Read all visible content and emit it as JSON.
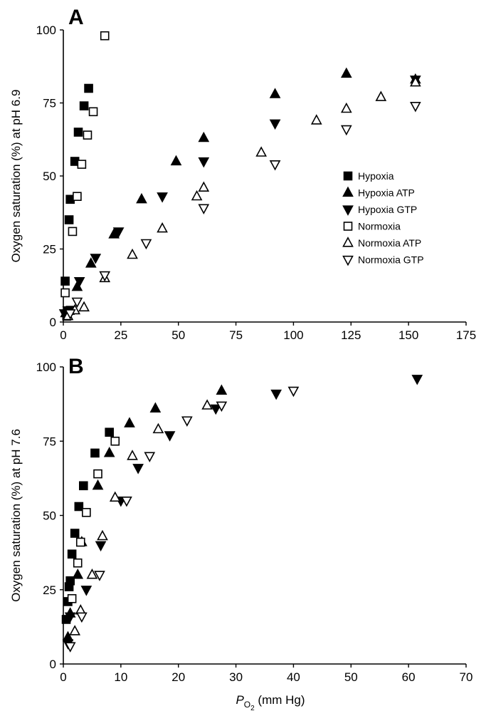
{
  "chart_data": [
    {
      "panel": "A",
      "type": "scatter",
      "ylabel": "Oxygen saturation (%) at pH 6.9",
      "xlabel": "",
      "xlim": [
        0,
        175
      ],
      "ylim": [
        0,
        100
      ],
      "xticks": [
        0,
        25,
        50,
        75,
        100,
        125,
        150,
        175
      ],
      "yticks": [
        0,
        25,
        50,
        75,
        100
      ],
      "grid": false,
      "legend_position": "right",
      "series": [
        {
          "name": "Hypoxia",
          "marker": "square",
          "filled": true,
          "points": [
            [
              0.8,
              14
            ],
            [
              1.5,
              2
            ],
            [
              2.5,
              35
            ],
            [
              3,
              42
            ],
            [
              5,
              55
            ],
            [
              6.5,
              65
            ],
            [
              9,
              74
            ],
            [
              11,
              80
            ],
            [
              3,
              4
            ]
          ]
        },
        {
          "name": "Hypoxia ATP",
          "marker": "triangle-up",
          "filled": true,
          "points": [
            [
              1,
              3
            ],
            [
              6,
              12
            ],
            [
              12,
              20
            ],
            [
              22,
              30
            ],
            [
              34,
              42
            ],
            [
              49,
              55
            ],
            [
              61,
              63
            ],
            [
              92,
              78
            ],
            [
              123,
              85
            ],
            [
              153,
              83
            ]
          ]
        },
        {
          "name": "Hypoxia GTP",
          "marker": "triangle-down",
          "filled": true,
          "points": [
            [
              0.5,
              3
            ],
            [
              2,
              4
            ],
            [
              7,
              14
            ],
            [
              14,
              22
            ],
            [
              24,
              31
            ],
            [
              43,
              43
            ],
            [
              61,
              55
            ],
            [
              92,
              68
            ],
            [
              153,
              83
            ]
          ]
        },
        {
          "name": "Normoxia",
          "marker": "square",
          "filled": false,
          "points": [
            [
              0.8,
              10
            ],
            [
              4,
              31
            ],
            [
              6,
              43
            ],
            [
              8,
              54
            ],
            [
              10.5,
              64
            ],
            [
              13,
              72
            ],
            [
              18,
              98
            ]
          ]
        },
        {
          "name": "Normoxia ATP",
          "marker": "triangle-up",
          "filled": false,
          "points": [
            [
              2,
              2
            ],
            [
              5,
              4
            ],
            [
              9,
              5
            ],
            [
              18,
              15
            ],
            [
              30,
              23
            ],
            [
              43,
              32
            ],
            [
              58,
              43
            ],
            [
              61,
              46
            ],
            [
              86,
              58
            ],
            [
              110,
              69
            ],
            [
              123,
              73
            ],
            [
              138,
              77
            ],
            [
              153,
              82
            ]
          ]
        },
        {
          "name": "Normoxia GTP",
          "marker": "triangle-down",
          "filled": false,
          "points": [
            [
              3,
              3
            ],
            [
              6,
              7
            ],
            [
              18,
              16
            ],
            [
              36,
              27
            ],
            [
              61,
              39
            ],
            [
              92,
              54
            ],
            [
              123,
              66
            ],
            [
              153,
              74
            ]
          ]
        }
      ]
    },
    {
      "panel": "B",
      "type": "scatter",
      "ylabel": "Oxygen saturation (%) at pH 7.6",
      "xlabel": "(mm Hg)",
      "xlabel_symbol": "P",
      "xlabel_subscript": "O",
      "xlabel_subsubscript": "2",
      "xlim": [
        0,
        70
      ],
      "ylim": [
        0,
        100
      ],
      "xticks": [
        0,
        10,
        20,
        30,
        40,
        50,
        60,
        70
      ],
      "yticks": [
        0,
        25,
        50,
        75,
        100
      ],
      "grid": false,
      "series": [
        {
          "name": "Hypoxia",
          "marker": "square",
          "filled": true,
          "points": [
            [
              0.5,
              15
            ],
            [
              0.8,
              21
            ],
            [
              1,
              26
            ],
            [
              1.2,
              28
            ],
            [
              1.5,
              37
            ],
            [
              2,
              44
            ],
            [
              2.7,
              53
            ],
            [
              3.5,
              60
            ],
            [
              5.5,
              71
            ],
            [
              8,
              78
            ]
          ]
        },
        {
          "name": "Hypoxia ATP",
          "marker": "triangle-up",
          "filled": true,
          "points": [
            [
              0.8,
              9
            ],
            [
              1.2,
              17
            ],
            [
              2.5,
              30
            ],
            [
              3.2,
              41
            ],
            [
              6,
              60
            ],
            [
              8,
              71
            ],
            [
              11.5,
              81
            ],
            [
              16,
              86
            ],
            [
              27.5,
              92
            ]
          ]
        },
        {
          "name": "Hypoxia GTP",
          "marker": "triangle-down",
          "filled": true,
          "points": [
            [
              0.8,
              7
            ],
            [
              1.2,
              16
            ],
            [
              4,
              25
            ],
            [
              6.5,
              40
            ],
            [
              10,
              55
            ],
            [
              13,
              66
            ],
            [
              18.5,
              77
            ],
            [
              26.5,
              86
            ],
            [
              37,
              91
            ],
            [
              61.5,
              96
            ]
          ]
        },
        {
          "name": "Normoxia",
          "marker": "square",
          "filled": false,
          "points": [
            [
              1.5,
              22
            ],
            [
              2.5,
              34
            ],
            [
              3,
              41
            ],
            [
              4,
              51
            ],
            [
              6,
              64
            ],
            [
              9,
              75
            ]
          ]
        },
        {
          "name": "Normoxia ATP",
          "marker": "triangle-up",
          "filled": false,
          "points": [
            [
              2,
              11
            ],
            [
              3,
              18
            ],
            [
              5,
              30
            ],
            [
              6.8,
              43
            ],
            [
              9,
              56
            ],
            [
              12,
              70
            ],
            [
              16.5,
              79
            ],
            [
              25,
              87
            ]
          ]
        },
        {
          "name": "Normoxia GTP",
          "marker": "triangle-down",
          "filled": false,
          "points": [
            [
              1.2,
              6
            ],
            [
              3.2,
              16
            ],
            [
              6.3,
              30
            ],
            [
              11,
              55
            ],
            [
              15,
              70
            ],
            [
              21.5,
              82
            ],
            [
              27.5,
              87
            ],
            [
              40,
              92
            ]
          ]
        }
      ]
    }
  ]
}
